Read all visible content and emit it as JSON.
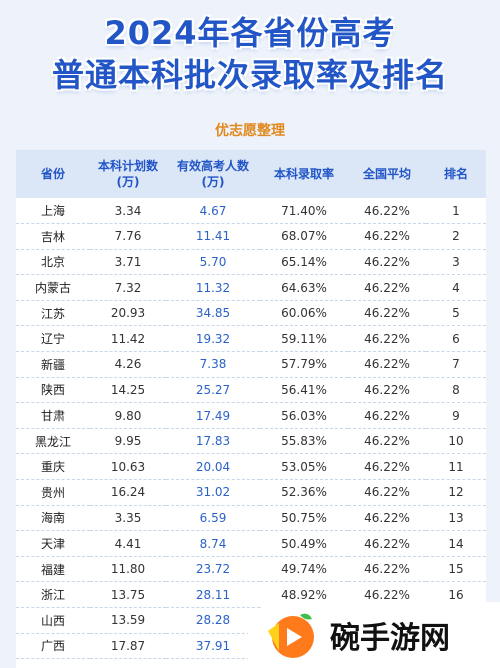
{
  "title": {
    "line1": "2024年各省份高考",
    "line2": "普通本科批次录取率及排名"
  },
  "subtitle": "优志愿整理",
  "table": {
    "headers": [
      {
        "line1": "省份",
        "line2": ""
      },
      {
        "line1": "本科计划数",
        "line2": "(万)"
      },
      {
        "line1": "有效高考人数",
        "line2": "(万)"
      },
      {
        "line1": "本科录取率",
        "line2": ""
      },
      {
        "line1": "全国平均",
        "line2": ""
      },
      {
        "line1": "排名",
        "line2": ""
      }
    ],
    "rows": [
      {
        "province": "上海",
        "plan": "3.34",
        "candidates": "4.67",
        "rate": "71.40%",
        "avg": "46.22%",
        "rank": "1"
      },
      {
        "province": "吉林",
        "plan": "7.76",
        "candidates": "11.41",
        "rate": "68.07%",
        "avg": "46.22%",
        "rank": "2"
      },
      {
        "province": "北京",
        "plan": "3.71",
        "candidates": "5.70",
        "rate": "65.14%",
        "avg": "46.22%",
        "rank": "3"
      },
      {
        "province": "内蒙古",
        "plan": "7.32",
        "candidates": "11.32",
        "rate": "64.63%",
        "avg": "46.22%",
        "rank": "4"
      },
      {
        "province": "江苏",
        "plan": "20.93",
        "candidates": "34.85",
        "rate": "60.06%",
        "avg": "46.22%",
        "rank": "5"
      },
      {
        "province": "辽宁",
        "plan": "11.42",
        "candidates": "19.32",
        "rate": "59.11%",
        "avg": "46.22%",
        "rank": "6"
      },
      {
        "province": "新疆",
        "plan": "4.26",
        "candidates": "7.38",
        "rate": "57.79%",
        "avg": "46.22%",
        "rank": "7"
      },
      {
        "province": "陕西",
        "plan": "14.25",
        "candidates": "25.27",
        "rate": "56.41%",
        "avg": "46.22%",
        "rank": "8"
      },
      {
        "province": "甘肃",
        "plan": "9.80",
        "candidates": "17.49",
        "rate": "56.03%",
        "avg": "46.22%",
        "rank": "9"
      },
      {
        "province": "黑龙江",
        "plan": "9.95",
        "candidates": "17.83",
        "rate": "55.83%",
        "avg": "46.22%",
        "rank": "10"
      },
      {
        "province": "重庆",
        "plan": "10.63",
        "candidates": "20.04",
        "rate": "53.05%",
        "avg": "46.22%",
        "rank": "11"
      },
      {
        "province": "贵州",
        "plan": "16.24",
        "candidates": "31.02",
        "rate": "52.36%",
        "avg": "46.22%",
        "rank": "12"
      },
      {
        "province": "海南",
        "plan": "3.35",
        "candidates": "6.59",
        "rate": "50.75%",
        "avg": "46.22%",
        "rank": "13"
      },
      {
        "province": "天津",
        "plan": "4.41",
        "candidates": "8.74",
        "rate": "50.49%",
        "avg": "46.22%",
        "rank": "14"
      },
      {
        "province": "福建",
        "plan": "11.80",
        "candidates": "23.72",
        "rate": "49.74%",
        "avg": "46.22%",
        "rank": "15"
      },
      {
        "province": "浙江",
        "plan": "13.75",
        "candidates": "28.11",
        "rate": "48.92%",
        "avg": "46.22%",
        "rank": "16"
      },
      {
        "province": "山西",
        "plan": "13.59",
        "candidates": "28.28",
        "rate": "",
        "avg": "",
        "rank": ""
      },
      {
        "province": "广西",
        "plan": "17.87",
        "candidates": "37.91",
        "rate": "",
        "avg": "",
        "rank": ""
      }
    ]
  },
  "watermark": {
    "text": "碗手游网",
    "icon": "play-logo-icon"
  },
  "colors": {
    "title": "#2256c7",
    "subtitle": "#e08a1e",
    "header_bg": "#dbe6f6",
    "candidates": "#2a62c9",
    "background": "#eef3fb"
  }
}
